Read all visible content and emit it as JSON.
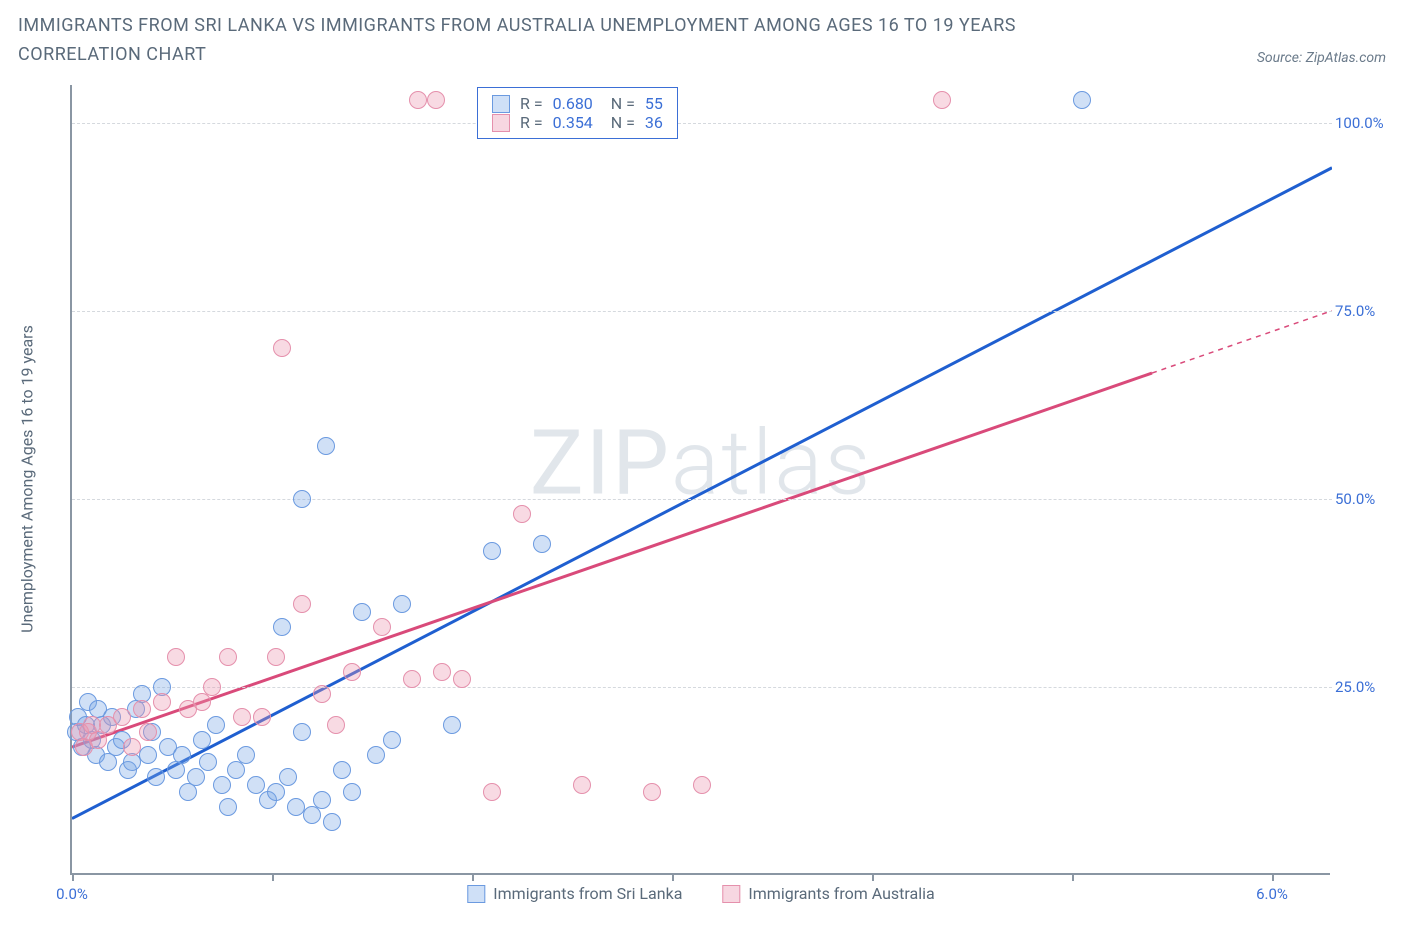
{
  "title": "IMMIGRANTS FROM SRI LANKA VS IMMIGRANTS FROM AUSTRALIA UNEMPLOYMENT AMONG AGES 16 TO 19 YEARS CORRELATION CHART",
  "source": "Source: ZipAtlas.com",
  "watermark": "ZIPatlas",
  "y_axis_title": "Unemployment Among Ages 16 to 19 years",
  "chart": {
    "type": "scatter",
    "background_color": "#ffffff",
    "grid_color": "#d5d9de",
    "axis_color": "#8a96a3",
    "xlim": [
      0,
      6.3
    ],
    "ylim": [
      0,
      105
    ],
    "x_ticks": [
      0,
      1,
      2,
      3,
      4,
      5,
      6
    ],
    "x_tick_labels": {
      "0": "0.0%",
      "6": "6.0%"
    },
    "y_ticks": [
      25,
      50,
      75,
      100
    ],
    "y_tick_labels": [
      "25.0%",
      "50.0%",
      "75.0%",
      "100.0%"
    ],
    "marker_radius": 9,
    "marker_stroke_width": 1.5,
    "line_width": 3,
    "title_fontsize": 18,
    "label_fontsize": 16,
    "tick_fontsize": 15
  },
  "series": [
    {
      "name": "Immigrants from Sri Lanka",
      "R": "0.680",
      "N": "55",
      "color_fill": "rgba(120,165,230,0.35)",
      "color_stroke": "#6b9ae0",
      "swatch_fill": "#cfe0f7",
      "swatch_border": "#6b9ae0",
      "trend_color": "#1f5fd0",
      "trend": {
        "x1": 0.0,
        "y1": 7.5,
        "x2": 6.3,
        "y2": 94.0,
        "dash_from_x": null
      },
      "points": [
        [
          0.02,
          19
        ],
        [
          0.03,
          21
        ],
        [
          0.05,
          17
        ],
        [
          0.07,
          20
        ],
        [
          0.08,
          23
        ],
        [
          0.1,
          18
        ],
        [
          0.12,
          16
        ],
        [
          0.13,
          22
        ],
        [
          0.15,
          20
        ],
        [
          0.18,
          15
        ],
        [
          0.2,
          21
        ],
        [
          0.22,
          17
        ],
        [
          0.25,
          18
        ],
        [
          0.28,
          14
        ],
        [
          0.3,
          15
        ],
        [
          0.32,
          22
        ],
        [
          0.35,
          24
        ],
        [
          0.38,
          16
        ],
        [
          0.4,
          19
        ],
        [
          0.42,
          13
        ],
        [
          0.45,
          25
        ],
        [
          0.48,
          17
        ],
        [
          0.52,
          14
        ],
        [
          0.55,
          16
        ],
        [
          0.58,
          11
        ],
        [
          0.62,
          13
        ],
        [
          0.65,
          18
        ],
        [
          0.68,
          15
        ],
        [
          0.72,
          20
        ],
        [
          0.75,
          12
        ],
        [
          0.78,
          9
        ],
        [
          0.82,
          14
        ],
        [
          0.87,
          16
        ],
        [
          0.92,
          12
        ],
        [
          0.98,
          10
        ],
        [
          1.02,
          11
        ],
        [
          1.05,
          33
        ],
        [
          1.08,
          13
        ],
        [
          1.12,
          9
        ],
        [
          1.15,
          19
        ],
        [
          1.15,
          50
        ],
        [
          1.2,
          8
        ],
        [
          1.25,
          10
        ],
        [
          1.27,
          57
        ],
        [
          1.3,
          7
        ],
        [
          1.35,
          14
        ],
        [
          1.4,
          11
        ],
        [
          1.45,
          35
        ],
        [
          1.52,
          16
        ],
        [
          1.6,
          18
        ],
        [
          1.65,
          36
        ],
        [
          1.9,
          20
        ],
        [
          2.1,
          43
        ],
        [
          2.35,
          44
        ],
        [
          5.05,
          103
        ]
      ]
    },
    {
      "name": "Immigrants from Australia",
      "R": "0.354",
      "N": "36",
      "color_fill": "rgba(235,150,175,0.35)",
      "color_stroke": "#e590ac",
      "swatch_fill": "#f7d7e1",
      "swatch_border": "#e590ac",
      "trend_color": "#d94a7a",
      "trend": {
        "x1": 0.0,
        "y1": 17.0,
        "x2": 6.3,
        "y2": 75.0,
        "dash_from_x": 5.4
      },
      "points": [
        [
          0.04,
          19
        ],
        [
          0.06,
          17
        ],
        [
          0.08,
          19
        ],
        [
          0.1,
          20
        ],
        [
          0.13,
          18
        ],
        [
          0.18,
          20
        ],
        [
          0.25,
          21
        ],
        [
          0.3,
          17
        ],
        [
          0.35,
          22
        ],
        [
          0.38,
          19
        ],
        [
          0.45,
          23
        ],
        [
          0.52,
          29
        ],
        [
          0.58,
          22
        ],
        [
          0.65,
          23
        ],
        [
          0.7,
          25
        ],
        [
          0.78,
          29
        ],
        [
          0.85,
          21
        ],
        [
          0.95,
          21
        ],
        [
          1.02,
          29
        ],
        [
          1.05,
          70
        ],
        [
          1.15,
          36
        ],
        [
          1.25,
          24
        ],
        [
          1.32,
          20
        ],
        [
          1.4,
          27
        ],
        [
          1.55,
          33
        ],
        [
          1.7,
          26
        ],
        [
          1.73,
          103
        ],
        [
          1.82,
          103
        ],
        [
          1.85,
          27
        ],
        [
          1.95,
          26
        ],
        [
          2.1,
          11
        ],
        [
          2.25,
          48
        ],
        [
          2.55,
          12
        ],
        [
          2.9,
          11
        ],
        [
          3.15,
          12
        ],
        [
          4.35,
          103
        ]
      ]
    }
  ],
  "legend_bottom": [
    {
      "label": "Immigrants from Sri Lanka",
      "swatch_fill": "#cfe0f7",
      "swatch_border": "#6b9ae0"
    },
    {
      "label": "Immigrants from Australia",
      "swatch_fill": "#f7d7e1",
      "swatch_border": "#e590ac"
    }
  ]
}
